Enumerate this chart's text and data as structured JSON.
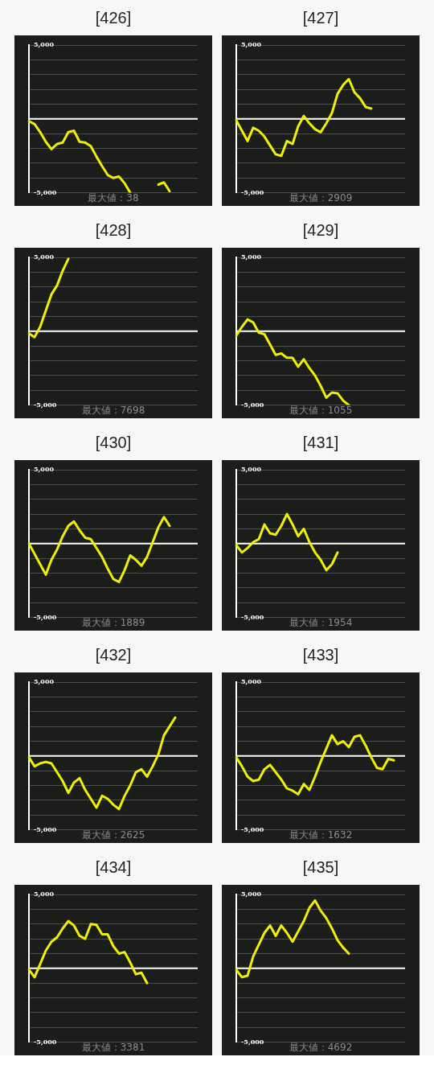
{
  "chart_data": [
    {
      "type": "line",
      "title": "[426]",
      "xlabel": "最大値：38",
      "tick_labels": "y",
      "grid": "y",
      "ylim": [
        -5000,
        5000
      ],
      "yticks": [
        {
          "value": -5000,
          "label": "-5,000"
        },
        {
          "value": -4000,
          "label": null
        },
        {
          "value": -3000,
          "label": null
        },
        {
          "value": -2000,
          "label": null
        },
        {
          "value": -1000,
          "label": null
        },
        {
          "value": 0,
          "label": null
        },
        {
          "value": 1000,
          "label": null
        },
        {
          "value": 2000,
          "label": null
        },
        {
          "value": 3000,
          "label": null
        },
        {
          "value": 4000,
          "label": null
        },
        {
          "value": 5000,
          "label": "5,000"
        }
      ],
      "ref_lines": [
        {
          "axis": "y",
          "value": 0,
          "color": "#ffffff"
        }
      ],
      "categories": [
        null,
        null,
        null,
        null,
        null,
        null,
        null,
        null,
        null,
        null,
        null,
        null,
        null,
        null,
        null,
        null,
        null,
        null,
        null,
        null,
        null,
        null,
        null,
        null,
        null,
        null,
        null,
        null,
        null,
        null,
        null
      ],
      "series": [
        {
          "color": "#f0f000",
          "values": [
            -150,
            -350,
            -900,
            -1550,
            -2050,
            -1700,
            -1600,
            -900,
            -800,
            -1550,
            -1600,
            -1850,
            -2550,
            -3200,
            -3800,
            -4000,
            -3900,
            -4350,
            -5000,
            null,
            null,
            null,
            null,
            null,
            null,
            null,
            null,
            null,
            null,
            null,
            null
          ]
        },
        {
          "color": "#f0f000",
          "values": [
            null,
            null,
            null,
            null,
            null,
            null,
            null,
            null,
            null,
            null,
            null,
            null,
            null,
            null,
            null,
            null,
            null,
            null,
            null,
            null,
            null,
            null,
            null,
            -4450,
            -4300,
            -4900,
            null,
            null,
            null,
            null,
            null
          ]
        }
      ]
    },
    {
      "type": "line",
      "title": "[427]",
      "xlabel": "最大値：2909",
      "tick_labels": "y",
      "grid": "y",
      "ylim": [
        -5000,
        5000
      ],
      "yticks": [
        {
          "value": -5000,
          "label": "-5,000"
        },
        {
          "value": -4000,
          "label": null
        },
        {
          "value": -3000,
          "label": null
        },
        {
          "value": -2000,
          "label": null
        },
        {
          "value": -1000,
          "label": null
        },
        {
          "value": 0,
          "label": null
        },
        {
          "value": 1000,
          "label": null
        },
        {
          "value": 2000,
          "label": null
        },
        {
          "value": 3000,
          "label": null
        },
        {
          "value": 4000,
          "label": null
        },
        {
          "value": 5000,
          "label": "5,000"
        }
      ],
      "ref_lines": [
        {
          "axis": "y",
          "value": 0,
          "color": "#ffffff"
        }
      ],
      "categories": [
        null,
        null,
        null,
        null,
        null,
        null,
        null,
        null,
        null,
        null,
        null,
        null,
        null,
        null,
        null,
        null,
        null,
        null,
        null,
        null,
        null,
        null,
        null,
        null,
        null,
        null,
        null,
        null,
        null,
        null,
        null
      ],
      "series": [
        {
          "color": "#f0f000",
          "values": [
            -100,
            -800,
            -1500,
            -600,
            -800,
            -1200,
            -1800,
            -2400,
            -2500,
            -1500,
            -1700,
            -500,
            200,
            -300,
            -700,
            -900,
            -300,
            400,
            1700,
            2300,
            2700,
            1800,
            1400,
            800,
            700,
            null,
            null,
            null,
            null,
            null,
            null
          ]
        }
      ]
    },
    {
      "type": "line",
      "title": "[428]",
      "xlabel": "最大値：7698",
      "tick_labels": "y",
      "grid": "y",
      "ylim": [
        -5000,
        5000
      ],
      "yticks": [
        {
          "value": -5000,
          "label": "-5,000"
        },
        {
          "value": -4000,
          "label": null
        },
        {
          "value": -3000,
          "label": null
        },
        {
          "value": -2000,
          "label": null
        },
        {
          "value": -1000,
          "label": null
        },
        {
          "value": 0,
          "label": null
        },
        {
          "value": 1000,
          "label": null
        },
        {
          "value": 2000,
          "label": null
        },
        {
          "value": 3000,
          "label": null
        },
        {
          "value": 4000,
          "label": null
        },
        {
          "value": 5000,
          "label": "5,000"
        }
      ],
      "ref_lines": [
        {
          "axis": "y",
          "value": 0,
          "color": "#ffffff"
        }
      ],
      "categories": [
        null,
        null,
        null,
        null,
        null,
        null,
        null,
        null,
        null,
        null,
        null,
        null,
        null,
        null,
        null,
        null,
        null,
        null,
        null,
        null,
        null,
        null,
        null,
        null,
        null,
        null,
        null,
        null,
        null,
        null,
        null
      ],
      "series": [
        {
          "color": "#f0f000",
          "values": [
            -150,
            -400,
            300,
            1400,
            2500,
            3100,
            4100,
            4900,
            null,
            null,
            null,
            null,
            null,
            null,
            null,
            null,
            null,
            null,
            null,
            null,
            null,
            null,
            null,
            null,
            null,
            null,
            null,
            null,
            null,
            null,
            null
          ]
        }
      ]
    },
    {
      "type": "line",
      "title": "[429]",
      "xlabel": "最大値：1055",
      "tick_labels": "y",
      "grid": "y",
      "ylim": [
        -5000,
        5000
      ],
      "yticks": [
        {
          "value": -5000,
          "label": "-5,000"
        },
        {
          "value": -4000,
          "label": null
        },
        {
          "value": -3000,
          "label": null
        },
        {
          "value": -2000,
          "label": null
        },
        {
          "value": -1000,
          "label": null
        },
        {
          "value": 0,
          "label": null
        },
        {
          "value": 1000,
          "label": null
        },
        {
          "value": 2000,
          "label": null
        },
        {
          "value": 3000,
          "label": null
        },
        {
          "value": 4000,
          "label": null
        },
        {
          "value": 5000,
          "label": "5,000"
        }
      ],
      "ref_lines": [
        {
          "axis": "y",
          "value": 0,
          "color": "#ffffff"
        }
      ],
      "categories": [
        null,
        null,
        null,
        null,
        null,
        null,
        null,
        null,
        null,
        null,
        null,
        null,
        null,
        null,
        null,
        null,
        null,
        null,
        null,
        null,
        null,
        null,
        null,
        null,
        null,
        null,
        null,
        null,
        null,
        null,
        null
      ],
      "series": [
        {
          "color": "#f0f000",
          "values": [
            -300,
            300,
            800,
            600,
            -100,
            -200,
            -900,
            -1600,
            -1500,
            -1800,
            -1800,
            -2400,
            -1900,
            -2500,
            -3000,
            -3700,
            -4500,
            -4150,
            -4200,
            -4700,
            -5000,
            null,
            null,
            null,
            null,
            null,
            null,
            null,
            null,
            null,
            null
          ]
        }
      ]
    },
    {
      "type": "line",
      "title": "[430]",
      "xlabel": "最大値：1889",
      "tick_labels": "y",
      "grid": "y",
      "ylim": [
        -5000,
        5000
      ],
      "yticks": [
        {
          "value": -5000,
          "label": "-5,000"
        },
        {
          "value": -4000,
          "label": null
        },
        {
          "value": -3000,
          "label": null
        },
        {
          "value": -2000,
          "label": null
        },
        {
          "value": -1000,
          "label": null
        },
        {
          "value": 0,
          "label": null
        },
        {
          "value": 1000,
          "label": null
        },
        {
          "value": 2000,
          "label": null
        },
        {
          "value": 3000,
          "label": null
        },
        {
          "value": 4000,
          "label": null
        },
        {
          "value": 5000,
          "label": "5,000"
        }
      ],
      "ref_lines": [
        {
          "axis": "y",
          "value": 0,
          "color": "#ffffff"
        }
      ],
      "categories": [
        null,
        null,
        null,
        null,
        null,
        null,
        null,
        null,
        null,
        null,
        null,
        null,
        null,
        null,
        null,
        null,
        null,
        null,
        null,
        null,
        null,
        null,
        null,
        null,
        null,
        null,
        null,
        null,
        null,
        null,
        null
      ],
      "series": [
        {
          "color": "#f0f000",
          "values": [
            0,
            -700,
            -1400,
            -2100,
            -1100,
            -400,
            500,
            1200,
            1500,
            900,
            400,
            300,
            -300,
            -900,
            -1700,
            -2400,
            -2600,
            -1800,
            -800,
            -1100,
            -1500,
            -900,
            100,
            1100,
            1800,
            1200,
            null,
            null,
            null,
            null,
            null
          ]
        }
      ]
    },
    {
      "type": "line",
      "title": "[431]",
      "xlabel": "最大値：1954",
      "tick_labels": "y",
      "grid": "y",
      "ylim": [
        -5000,
        5000
      ],
      "yticks": [
        {
          "value": -5000,
          "label": "-5,000"
        },
        {
          "value": -4000,
          "label": null
        },
        {
          "value": -3000,
          "label": null
        },
        {
          "value": -2000,
          "label": null
        },
        {
          "value": -1000,
          "label": null
        },
        {
          "value": 0,
          "label": null
        },
        {
          "value": 1000,
          "label": null
        },
        {
          "value": 2000,
          "label": null
        },
        {
          "value": 3000,
          "label": null
        },
        {
          "value": 4000,
          "label": null
        },
        {
          "value": 5000,
          "label": "5,000"
        }
      ],
      "ref_lines": [
        {
          "axis": "y",
          "value": 0,
          "color": "#ffffff"
        }
      ],
      "categories": [
        null,
        null,
        null,
        null,
        null,
        null,
        null,
        null,
        null,
        null,
        null,
        null,
        null,
        null,
        null,
        null,
        null,
        null,
        null,
        null,
        null,
        null,
        null,
        null,
        null,
        null,
        null,
        null,
        null,
        null,
        null
      ],
      "series": [
        {
          "color": "#f0f000",
          "values": [
            -100,
            -600,
            -300,
            100,
            300,
            1300,
            700,
            600,
            1200,
            2000,
            1300,
            500,
            1000,
            100,
            -600,
            -1100,
            -1800,
            -1400,
            -600,
            null,
            null,
            null,
            null,
            null,
            null,
            null,
            null,
            null,
            null,
            null,
            null
          ]
        }
      ]
    },
    {
      "type": "line",
      "title": "[432]",
      "xlabel": "最大値：2625",
      "tick_labels": "y",
      "grid": "y",
      "ylim": [
        -5000,
        5000
      ],
      "yticks": [
        {
          "value": -5000,
          "label": "-5,000"
        },
        {
          "value": -4000,
          "label": null
        },
        {
          "value": -3000,
          "label": null
        },
        {
          "value": -2000,
          "label": null
        },
        {
          "value": -1000,
          "label": null
        },
        {
          "value": 0,
          "label": null
        },
        {
          "value": 1000,
          "label": null
        },
        {
          "value": 2000,
          "label": null
        },
        {
          "value": 3000,
          "label": null
        },
        {
          "value": 4000,
          "label": null
        },
        {
          "value": 5000,
          "label": "5,000"
        }
      ],
      "ref_lines": [
        {
          "axis": "y",
          "value": 0,
          "color": "#ffffff"
        }
      ],
      "categories": [
        null,
        null,
        null,
        null,
        null,
        null,
        null,
        null,
        null,
        null,
        null,
        null,
        null,
        null,
        null,
        null,
        null,
        null,
        null,
        null,
        null,
        null,
        null,
        null,
        null,
        null,
        null,
        null,
        null,
        null,
        null
      ],
      "series": [
        {
          "color": "#f0f000",
          "values": [
            -100,
            -700,
            -500,
            -400,
            -500,
            -1100,
            -1700,
            -2500,
            -1800,
            -1500,
            -2300,
            -2900,
            -3500,
            -2700,
            -2900,
            -3300,
            -3600,
            -2700,
            -2000,
            -1100,
            -900,
            -1400,
            -700,
            100,
            1400,
            2000,
            2600,
            null,
            null,
            null,
            null
          ]
        }
      ]
    },
    {
      "type": "line",
      "title": "[433]",
      "xlabel": "最大値：1632",
      "tick_labels": "y",
      "grid": "y",
      "ylim": [
        -5000,
        5000
      ],
      "yticks": [
        {
          "value": -5000,
          "label": "-5,000"
        },
        {
          "value": -4000,
          "label": null
        },
        {
          "value": -3000,
          "label": null
        },
        {
          "value": -2000,
          "label": null
        },
        {
          "value": -1000,
          "label": null
        },
        {
          "value": 0,
          "label": null
        },
        {
          "value": 1000,
          "label": null
        },
        {
          "value": 2000,
          "label": null
        },
        {
          "value": 3000,
          "label": null
        },
        {
          "value": 4000,
          "label": null
        },
        {
          "value": 5000,
          "label": "5,000"
        }
      ],
      "ref_lines": [
        {
          "axis": "y",
          "value": 0,
          "color": "#ffffff"
        }
      ],
      "categories": [
        null,
        null,
        null,
        null,
        null,
        null,
        null,
        null,
        null,
        null,
        null,
        null,
        null,
        null,
        null,
        null,
        null,
        null,
        null,
        null,
        null,
        null,
        null,
        null,
        null,
        null,
        null,
        null,
        null,
        null,
        null
      ],
      "series": [
        {
          "color": "#f0f000",
          "values": [
            -100,
            -700,
            -1400,
            -1700,
            -1600,
            -900,
            -600,
            -1100,
            -1600,
            -2200,
            -2350,
            -2600,
            -1900,
            -2300,
            -1400,
            -400,
            500,
            1400,
            800,
            1000,
            600,
            1300,
            1400,
            700,
            -100,
            -800,
            -900,
            -200,
            -300,
            null,
            null
          ]
        }
      ]
    },
    {
      "type": "line",
      "title": "[434]",
      "xlabel": "最大値：3381",
      "tick_labels": "y",
      "grid": "y",
      "ylim": [
        -5000,
        5000
      ],
      "yticks": [
        {
          "value": -5000,
          "label": "-5,000"
        },
        {
          "value": -4000,
          "label": null
        },
        {
          "value": -3000,
          "label": null
        },
        {
          "value": -2000,
          "label": null
        },
        {
          "value": -1000,
          "label": null
        },
        {
          "value": 0,
          "label": null
        },
        {
          "value": 1000,
          "label": null
        },
        {
          "value": 2000,
          "label": null
        },
        {
          "value": 3000,
          "label": null
        },
        {
          "value": 4000,
          "label": null
        },
        {
          "value": 5000,
          "label": "5,000"
        }
      ],
      "ref_lines": [
        {
          "axis": "y",
          "value": 0,
          "color": "#ffffff"
        }
      ],
      "categories": [
        null,
        null,
        null,
        null,
        null,
        null,
        null,
        null,
        null,
        null,
        null,
        null,
        null,
        null,
        null,
        null,
        null,
        null,
        null,
        null,
        null,
        null,
        null,
        null,
        null,
        null,
        null,
        null,
        null,
        null,
        null
      ],
      "series": [
        {
          "color": "#f0f000",
          "values": [
            -100,
            -600,
            300,
            1200,
            1800,
            2100,
            2700,
            3200,
            2900,
            2200,
            2000,
            3000,
            2950,
            2300,
            2300,
            1500,
            1000,
            1100,
            400,
            -400,
            -300,
            -1000,
            null,
            null,
            null,
            null,
            null,
            null,
            null,
            null,
            null
          ]
        }
      ]
    },
    {
      "type": "line",
      "title": "[435]",
      "xlabel": "最大値：4692",
      "tick_labels": "y",
      "grid": "y",
      "ylim": [
        -5000,
        5000
      ],
      "yticks": [
        {
          "value": -5000,
          "label": "-5,000"
        },
        {
          "value": -4000,
          "label": null
        },
        {
          "value": -3000,
          "label": null
        },
        {
          "value": -2000,
          "label": null
        },
        {
          "value": -1000,
          "label": null
        },
        {
          "value": 0,
          "label": null
        },
        {
          "value": 1000,
          "label": null
        },
        {
          "value": 2000,
          "label": null
        },
        {
          "value": 3000,
          "label": null
        },
        {
          "value": 4000,
          "label": null
        },
        {
          "value": 5000,
          "label": "5,000"
        }
      ],
      "ref_lines": [
        {
          "axis": "y",
          "value": 0,
          "color": "#ffffff"
        }
      ],
      "categories": [
        null,
        null,
        null,
        null,
        null,
        null,
        null,
        null,
        null,
        null,
        null,
        null,
        null,
        null,
        null,
        null,
        null,
        null,
        null,
        null,
        null,
        null,
        null,
        null,
        null,
        null,
        null,
        null,
        null,
        null,
        null
      ],
      "series": [
        {
          "color": "#f0f000",
          "values": [
            -100,
            -600,
            -500,
            800,
            1600,
            2400,
            2900,
            2200,
            2900,
            2400,
            1800,
            2500,
            3200,
            4100,
            4600,
            3900,
            3400,
            2700,
            1900,
            1400,
            1000,
            null,
            null,
            null,
            null,
            null,
            null,
            null,
            null,
            null,
            null
          ]
        }
      ]
    }
  ]
}
